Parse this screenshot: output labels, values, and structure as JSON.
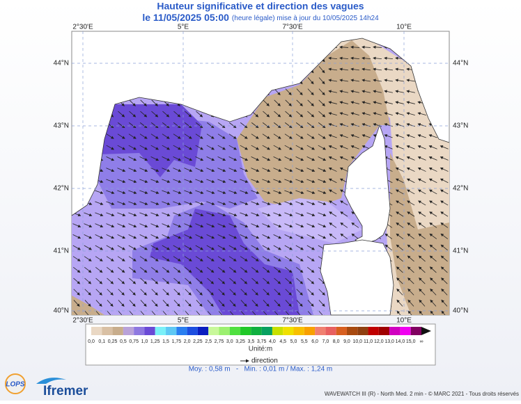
{
  "header": {
    "title": "Hauteur significative et direction des vagues",
    "date": "le 11/05/2025 05:00",
    "update": "(heure légale) mise à jour du 10/05/2025 14h24"
  },
  "axes": {
    "lon": [
      "2°30'E",
      "5°E",
      "7°30'E",
      "10°E"
    ],
    "lat": [
      "44°N",
      "43°N",
      "42°N",
      "41°N",
      "40°N"
    ]
  },
  "legend": {
    "labels": [
      "0,0",
      "0,1",
      "0,25",
      "0,5",
      "0,75",
      "1,0",
      "1,25",
      "1,5",
      "1,75",
      "2,0",
      "2,25",
      "2,5",
      "2,75",
      "3,0",
      "3,25",
      "3,5",
      "3,75",
      "4,0",
      "4,5",
      "5,0",
      "5,5",
      "6,0",
      "7,0",
      "8,0",
      "9,0",
      "10,0",
      "11,0",
      "12,0",
      "13,0",
      "14,0",
      "15,0",
      "∞"
    ],
    "colors": [
      "#ead8c4",
      "#d9c0a4",
      "#c8ad8c",
      "#b9a2d9",
      "#8e78e0",
      "#6a4ad6",
      "#7af0f8",
      "#5ec8f4",
      "#2a7ff0",
      "#1c4ee0",
      "#0a1ec0",
      "#c8f89a",
      "#9cf070",
      "#50e040",
      "#20c828",
      "#10b040",
      "#08a060",
      "#c8e000",
      "#f0e000",
      "#f8c000",
      "#f8a000",
      "#f08070",
      "#e86060",
      "#d86020",
      "#a84a10",
      "#904010",
      "#c00000",
      "#a00000",
      "#d000c0",
      "#f000f0",
      "#800060"
    ],
    "unit": "Unité:m",
    "direction": "direction"
  },
  "stats": "Moy. : 0,58 m   -   Min. : 0,01 m / Max. : 1,24 m",
  "footer": "WAVEWATCH III (R) - North Med. 2 min - © MARC 2021 - Tous droits réservés",
  "logos": {
    "lops": "LOPS",
    "ifremer": "Ifremer"
  }
}
